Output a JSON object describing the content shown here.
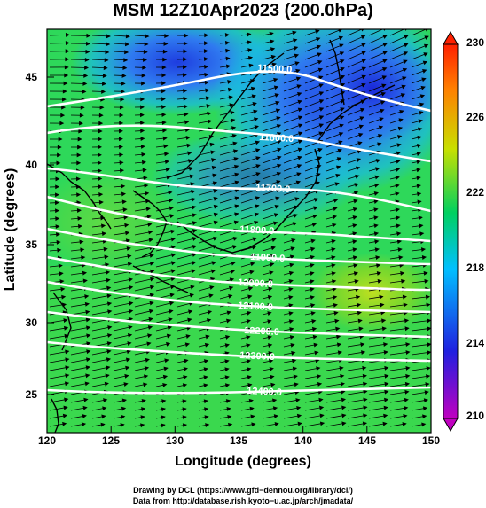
{
  "title": "MSM 12Z10Apr2023 (200.0hPa)",
  "x_axis": {
    "label": "Longitude (degrees)",
    "ticks": [
      "120",
      "125",
      "130",
      "135",
      "140",
      "145",
      "150"
    ],
    "range": [
      120,
      150
    ]
  },
  "y_axis": {
    "label": "Latitude  (degrees)",
    "ticks": [
      "25",
      "30",
      "35",
      "40",
      "45"
    ],
    "range": [
      22.4,
      47.6
    ]
  },
  "colorbar": {
    "ticks": [
      "210",
      "214",
      "218",
      "222",
      "226",
      "230"
    ],
    "range": [
      210,
      230
    ],
    "colors": [
      "#c000c0",
      "#2020e0",
      "#00c0ff",
      "#00d060",
      "#c8e000",
      "#ff8000",
      "#ff2000"
    ]
  },
  "contours": {
    "color": "#ffffff",
    "labels": [
      "11500.0",
      "11600.0",
      "11700.0",
      "11800.0",
      "11900.0",
      "12000.0",
      "12100.0",
      "12200.0",
      "12300.0",
      "12400.0"
    ]
  },
  "wind_vectors": {
    "color": "#000000",
    "direction": "westerly"
  },
  "footer": {
    "line1": "Drawing by DCL (https://www.gfd−dennou.org/library/dcl/)",
    "line2": "Data from http://database.rish.kyoto−u.ac.jp/arch/jmadata/"
  }
}
